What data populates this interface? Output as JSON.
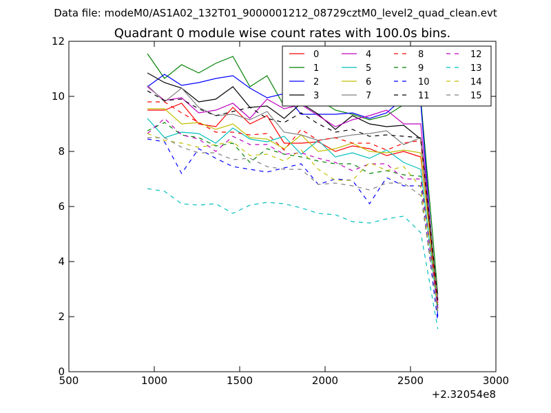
{
  "header": {
    "supertitle": "Data file: modeM0/AS1A02_132T01_9000001212_08729cztM0_level2_quad_clean.evt"
  },
  "chart_data": {
    "type": "line",
    "title": "Quadrant 0 module wise count rates with 100.0s bins.",
    "xlabel": "",
    "ylabel": "",
    "x_offset_label": "+2.32054e8",
    "xlim": [
      500,
      3000
    ],
    "ylim": [
      0,
      12
    ],
    "x_ticks": [
      500,
      1000,
      1500,
      2000,
      2500,
      3000
    ],
    "y_ticks": [
      0,
      2,
      4,
      6,
      8,
      10,
      12
    ],
    "x_tick_labels": [
      "500",
      "1000",
      "1500",
      "2000",
      "2500",
      "3000"
    ],
    "y_tick_labels": [
      "0",
      "2",
      "4",
      "6",
      "8",
      "10",
      "12"
    ],
    "grid": false,
    "legend_position": "top-right",
    "legend_columns": 4,
    "x": [
      960,
      1060,
      1160,
      1260,
      1360,
      1460,
      1560,
      1660,
      1760,
      1860,
      1960,
      2060,
      2160,
      2260,
      2360,
      2460,
      2560,
      2660
    ],
    "series": [
      {
        "name": "0",
        "color": "#ff0000",
        "dash": "solid",
        "values": [
          9.5,
          9.5,
          9.75,
          9.0,
          8.9,
          9.6,
          9.0,
          9.3,
          8.3,
          8.3,
          8.35,
          8.0,
          8.2,
          8.1,
          7.85,
          8.0,
          7.8,
          2.6
        ]
      },
      {
        "name": "1",
        "color": "#008000",
        "dash": "solid",
        "values": [
          11.55,
          10.65,
          11.15,
          10.85,
          11.2,
          11.45,
          10.35,
          10.75,
          9.65,
          10.3,
          9.9,
          9.5,
          9.35,
          9.15,
          9.3,
          9.7,
          9.9,
          2.8
        ]
      },
      {
        "name": "2",
        "color": "#0000ff",
        "dash": "solid",
        "values": [
          10.35,
          10.8,
          10.4,
          10.5,
          10.65,
          10.75,
          10.3,
          9.95,
          10.1,
          9.35,
          9.35,
          9.35,
          9.4,
          9.2,
          9.4,
          9.95,
          9.75,
          2.0
        ]
      },
      {
        "name": "3",
        "color": "#000000",
        "dash": "solid",
        "values": [
          10.85,
          10.5,
          10.3,
          9.8,
          9.9,
          10.35,
          9.6,
          9.65,
          9.2,
          9.75,
          9.35,
          8.8,
          9.3,
          9.0,
          8.9,
          8.95,
          8.45,
          2.4
        ]
      },
      {
        "name": "4",
        "color": "#bf00bf",
        "dash": "solid",
        "values": [
          10.35,
          9.85,
          9.95,
          9.4,
          9.5,
          9.75,
          9.2,
          9.9,
          9.55,
          9.7,
          9.3,
          8.9,
          9.15,
          9.3,
          9.5,
          9.0,
          9.0,
          2.5
        ]
      },
      {
        "name": "5",
        "color": "#00bfbf",
        "dash": "solid",
        "values": [
          9.2,
          8.5,
          8.7,
          8.65,
          8.3,
          8.85,
          8.45,
          8.35,
          8.55,
          7.9,
          8.4,
          7.8,
          7.95,
          7.75,
          8.05,
          7.6,
          7.35,
          2.2
        ]
      },
      {
        "name": "6",
        "color": "#bfbf00",
        "dash": "solid",
        "values": [
          9.55,
          9.55,
          9.0,
          9.05,
          8.8,
          9.0,
          8.5,
          8.45,
          8.1,
          8.6,
          8.0,
          8.1,
          8.3,
          8.0,
          7.95,
          8.05,
          7.95,
          2.3
        ]
      },
      {
        "name": "7",
        "color": "#808080",
        "dash": "solid",
        "values": [
          10.4,
          9.8,
          10.3,
          9.6,
          9.3,
          9.35,
          9.15,
          9.45,
          8.7,
          8.6,
          8.4,
          8.5,
          8.6,
          8.65,
          8.75,
          8.25,
          8.5,
          2.7
        ]
      },
      {
        "name": "8",
        "color": "#ff0000",
        "dash": "dashed",
        "values": [
          9.8,
          9.8,
          9.4,
          9.05,
          8.7,
          8.7,
          8.6,
          8.65,
          8.05,
          8.8,
          8.4,
          8.5,
          8.3,
          8.3,
          8.05,
          8.3,
          8.4,
          2.3
        ]
      },
      {
        "name": "9",
        "color": "#008000",
        "dash": "dashed",
        "values": [
          8.75,
          9.05,
          8.6,
          8.5,
          8.2,
          8.3,
          7.6,
          8.1,
          7.9,
          7.8,
          7.65,
          7.55,
          7.55,
          7.2,
          7.3,
          7.15,
          7.1,
          2.3
        ]
      },
      {
        "name": "10",
        "color": "#0000ff",
        "dash": "dashed",
        "values": [
          8.45,
          8.35,
          7.2,
          8.1,
          7.75,
          7.45,
          7.35,
          7.25,
          7.4,
          7.55,
          6.8,
          7.0,
          6.95,
          6.1,
          7.05,
          6.75,
          6.75,
          1.8
        ]
      },
      {
        "name": "11",
        "color": "#000000",
        "dash": "dashed",
        "values": [
          10.2,
          9.85,
          9.9,
          9.55,
          9.3,
          9.45,
          9.6,
          9.2,
          9.05,
          9.4,
          9.0,
          8.7,
          8.8,
          8.55,
          8.6,
          8.55,
          8.5,
          2.6
        ]
      },
      {
        "name": "12",
        "color": "#bf00bf",
        "dash": "dashed",
        "values": [
          8.65,
          9.2,
          8.6,
          8.45,
          8.0,
          8.55,
          8.25,
          8.25,
          7.9,
          7.95,
          7.75,
          7.6,
          7.3,
          7.55,
          7.55,
          7.0,
          7.0,
          2.3
        ]
      },
      {
        "name": "13",
        "color": "#00bfbf",
        "dash": "dashed",
        "values": [
          6.65,
          6.55,
          6.1,
          6.05,
          6.1,
          5.75,
          6.05,
          6.15,
          6.1,
          5.95,
          5.75,
          5.7,
          5.45,
          5.4,
          5.55,
          5.65,
          5.05,
          1.55
        ]
      },
      {
        "name": "14",
        "color": "#bfbf00",
        "dash": "dashed",
        "values": [
          8.65,
          8.4,
          8.3,
          8.15,
          8.25,
          8.35,
          7.85,
          7.9,
          7.65,
          8.05,
          7.35,
          6.95,
          6.95,
          7.6,
          7.3,
          7.45,
          6.7,
          2.1
        ]
      },
      {
        "name": "15",
        "color": "#808080",
        "dash": "dashed",
        "values": [
          8.5,
          8.5,
          8.15,
          7.95,
          7.95,
          7.7,
          7.75,
          7.45,
          7.35,
          7.35,
          6.8,
          6.85,
          6.75,
          6.6,
          6.85,
          6.85,
          6.4,
          2.2
        ]
      }
    ]
  }
}
